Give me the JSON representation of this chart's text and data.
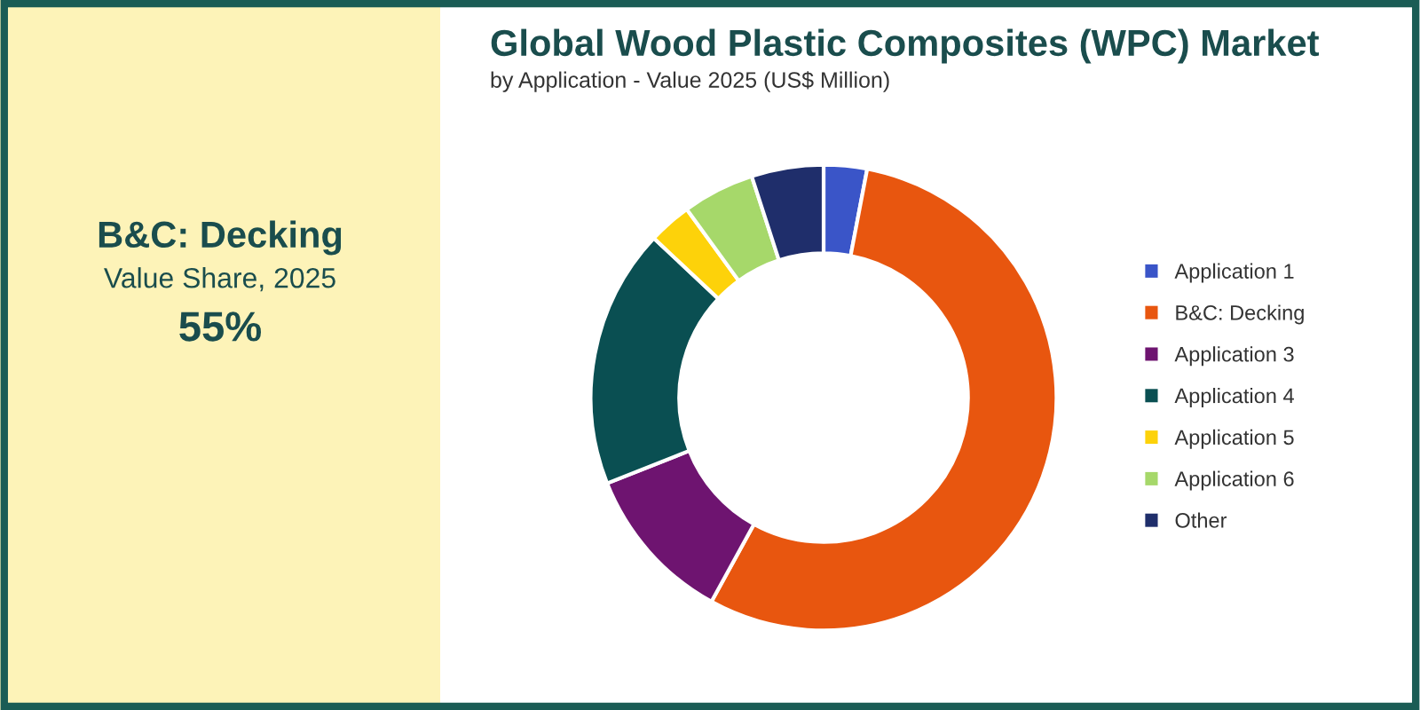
{
  "chart_data": [
    {
      "type": "other",
      "title": "B&C: Decking",
      "subtitle": "Value Share, 2025",
      "annotations": [
        "55%"
      ]
    },
    {
      "type": "donut",
      "title": "Global Wood Plastic Composites (WPC) Market",
      "subtitle": "by Application - Value 2025 (US$ Million)",
      "categories": [
        "Application 1",
        "B&C: Decking",
        "Application 3",
        "Application 4",
        "Application 5",
        "Application 6",
        "Other"
      ],
      "values": [
        3,
        55,
        11,
        18,
        3,
        5,
        5
      ],
      "colors": [
        "#3a55c8",
        "#e8560f",
        "#6e1470",
        "#0a4f52",
        "#fdd20a",
        "#a6d86a",
        "#1f2e6b"
      ],
      "legend": "right"
    }
  ]
}
